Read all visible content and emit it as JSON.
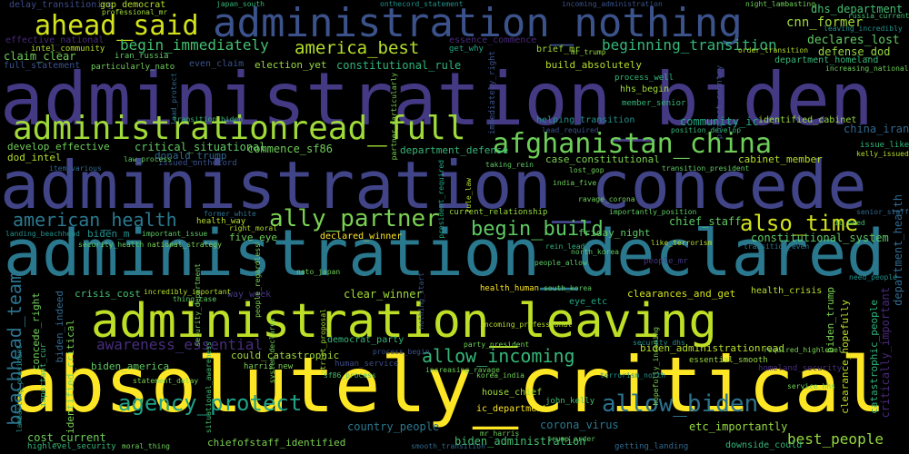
{
  "words": [
    {
      "text": "absolutely_critical",
      "color": "#fde725"
    },
    {
      "text": "administration_biden",
      "color": "#443983"
    },
    {
      "text": "administration_concede",
      "color": "#414487"
    },
    {
      "text": "administration_declared",
      "color": "#2a788e"
    },
    {
      "text": "administration_leaving",
      "color": "#bddf26"
    },
    {
      "text": "administration_nothing",
      "color": "#3b528b"
    },
    {
      "text": "administrationread_full",
      "color": "#a0da39"
    },
    {
      "text": "afghanistan_china",
      "color": "#6ece58"
    },
    {
      "text": "ahead_said",
      "color": "#d2e21b"
    },
    {
      "text": "america_best",
      "color": "#b5de2b"
    },
    {
      "text": "begin_immediately",
      "color": "#44bf70"
    },
    {
      "text": "beginning_transition",
      "color": "#35b779"
    },
    {
      "text": "american_health",
      "color": "#2a788e"
    },
    {
      "text": "ally_partner",
      "color": "#7ad151"
    },
    {
      "text": "begin_build",
      "color": "#5ec962"
    },
    {
      "text": "also_time",
      "color": "#d2e21b"
    },
    {
      "text": "allow_incoming",
      "color": "#35b779"
    },
    {
      "text": "allow_biden",
      "color": "#2c728e"
    },
    {
      "text": "agency_protect",
      "color": "#1fa187"
    },
    {
      "text": "awareness_essential",
      "color": "#472d7b"
    },
    {
      "text": "beachhead_team",
      "color": "#2c728e"
    },
    {
      "text": "cnn_former",
      "color": "#a0da39"
    },
    {
      "text": "dhs_department",
      "color": "#44bf70"
    },
    {
      "text": "declares_lost",
      "color": "#5ec962"
    },
    {
      "text": "defense_dod",
      "color": "#95d840"
    },
    {
      "text": "department_homeland",
      "color": "#35b779"
    },
    {
      "text": "delay_transitioning",
      "color": "#3e4a89"
    },
    {
      "text": "effective_national",
      "color": "#482878"
    },
    {
      "text": "claim_clear",
      "color": "#6ece58"
    },
    {
      "text": "full_statement",
      "color": "#3b528b"
    },
    {
      "text": "constitutional_rule",
      "color": "#2fb47c"
    },
    {
      "text": "build_absolutely",
      "color": "#b5de2b"
    },
    {
      "text": "brief_mr",
      "color": "#a0da39"
    },
    {
      "text": "even_claim",
      "color": "#3b528b"
    },
    {
      "text": "election_yet",
      "color": "#95d840"
    },
    {
      "text": "essence_commence",
      "color": "#482878"
    },
    {
      "text": "get_why",
      "color": "#22a884"
    },
    {
      "text": "community_ic",
      "color": "#22a884"
    },
    {
      "text": "develop_effective",
      "color": "#6ece58"
    },
    {
      "text": "critical_situational",
      "color": "#5ec962"
    },
    {
      "text": "dod_intel",
      "color": "#b5de2b"
    },
    {
      "text": "donald_trump",
      "color": "#31688e"
    },
    {
      "text": "issued_onthecord",
      "color": "#3b528b"
    },
    {
      "text": "commence_sf86",
      "color": "#6ece58"
    },
    {
      "text": "identified_cabinet",
      "color": "#95d840"
    },
    {
      "text": "china_iran",
      "color": "#31688e"
    },
    {
      "text": "department_defense",
      "color": "#35b779"
    },
    {
      "text": "case_constitutional",
      "color": "#7ad151"
    },
    {
      "text": "cabinet_member",
      "color": "#b5de2b"
    },
    {
      "text": "current_relationship",
      "color": "#95d840"
    },
    {
      "text": "chief_staff",
      "color": "#5ec962"
    },
    {
      "text": "friday_night",
      "color": "#5ec962"
    },
    {
      "text": "constitutional_system",
      "color": "#5ec962"
    },
    {
      "text": "health_way",
      "color": "#b5de2b"
    },
    {
      "text": "five_eye",
      "color": "#6ece58"
    },
    {
      "text": "declared_winner",
      "color": "#fde725"
    },
    {
      "text": "biden_m",
      "color": "#21918c"
    },
    {
      "text": "crisis_cost",
      "color": "#44bf70"
    },
    {
      "text": "concede_right",
      "color": "#6ece58"
    },
    {
      "text": "clear_winner",
      "color": "#a0da39"
    },
    {
      "text": "health_human",
      "color": "#fde725"
    },
    {
      "text": "clearances_and_get",
      "color": "#d2e21b"
    },
    {
      "text": "health_crisis",
      "color": "#b5de2b"
    },
    {
      "text": "biden_indeed",
      "color": "#31688e"
    },
    {
      "text": "biden_trump",
      "color": "#7ad151"
    },
    {
      "text": "eye_etc",
      "color": "#21a685"
    },
    {
      "text": "way_week",
      "color": "#443983"
    },
    {
      "text": "could_catastrophic",
      "color": "#a0da39"
    },
    {
      "text": "democrat_party",
      "color": "#35b779"
    },
    {
      "text": "biden_administrationread",
      "color": "#b5de2b"
    },
    {
      "text": "essential_smooth",
      "color": "#95d840"
    },
    {
      "text": "biden_america",
      "color": "#5ec962"
    },
    {
      "text": "important_cur",
      "color": "#35b779"
    },
    {
      "text": "harris_new",
      "color": "#7ad151"
    },
    {
      "text": "human_service",
      "color": "#3e4a89"
    },
    {
      "text": "house_chief",
      "color": "#a0da39"
    },
    {
      "text": "ic_department",
      "color": "#fde725"
    },
    {
      "text": "john_kelly",
      "color": "#44bf70"
    },
    {
      "text": "country_people",
      "color": "#2a788e"
    },
    {
      "text": "corona_virus",
      "color": "#2a788e"
    },
    {
      "text": "biden_administration",
      "color": "#44bf70"
    },
    {
      "text": "etc_importantly",
      "color": "#95d840"
    },
    {
      "text": "best_people",
      "color": "#95d840"
    },
    {
      "text": "cost_current",
      "color": "#6ece58"
    },
    {
      "text": "highlevel_security",
      "color": "#35b779"
    },
    {
      "text": "chiefofstaff_identified",
      "color": "#7ad151"
    },
    {
      "text": "downside_could",
      "color": "#35b779"
    },
    {
      "text": "getting_landing",
      "color": "#31688e"
    },
    {
      "text": "clearance_hopefully",
      "color": "#bddf26"
    },
    {
      "text": "catastrophic_people",
      "color": "#2fb47c"
    },
    {
      "text": "critically_important",
      "color": "#482878"
    },
    {
      "text": "department_health",
      "color": "#31688e"
    },
    {
      "text": "identified_critical",
      "color": "#7ad151"
    },
    {
      "text": "gop_democrat",
      "color": "#b5de2b"
    },
    {
      "text": "intel_community",
      "color": "#b5de2b"
    },
    {
      "text": "iran_russia",
      "color": "#5ec962"
    },
    {
      "text": "particularly_nato",
      "color": "#6ece58"
    },
    {
      "text": "process_well",
      "color": "#35b779"
    },
    {
      "text": "hhs_begin",
      "color": "#a0da39"
    },
    {
      "text": "member_senior",
      "color": "#35b779"
    },
    {
      "text": "helping_transition",
      "color": "#21918c"
    },
    {
      "text": "lead_required",
      "color": "#3b528b"
    },
    {
      "text": "position_develop",
      "color": "#35b779"
    },
    {
      "text": "issue_like",
      "color": "#35b779"
    },
    {
      "text": "kelly_issued",
      "color": "#b5de2b"
    },
    {
      "text": "rein_lead",
      "color": "#2fb47c"
    },
    {
      "text": "like_terrorism",
      "color": "#b5de2b"
    },
    {
      "text": "people_mr",
      "color": "#443983"
    },
    {
      "text": "importantly_position",
      "color": "#5ec962"
    },
    {
      "text": "ravage_corona",
      "color": "#6ece58"
    },
    {
      "text": "immediately_right",
      "color": "#3b528b"
    },
    {
      "text": "nothing_start",
      "color": "#3b528b"
    },
    {
      "text": "russia_current",
      "color": "#44bf70"
    },
    {
      "text": "leaving_incredibly",
      "color": "#21918c"
    },
    {
      "text": "increasing_national",
      "color": "#6ece58"
    },
    {
      "text": "order_transition",
      "color": "#b5de2b"
    },
    {
      "text": "protect_country",
      "color": "#3b528b"
    },
    {
      "text": "homeland_security",
      "color": "#472d7b"
    },
    {
      "text": "korea_india",
      "color": "#6ece58"
    },
    {
      "text": "senior_staff",
      "color": "#31688e"
    },
    {
      "text": "ic_need",
      "color": "#44bf70"
    },
    {
      "text": "professional_mr",
      "color": "#a0da39"
    },
    {
      "text": "japan_south",
      "color": "#35b779"
    },
    {
      "text": "onthecord_statement",
      "color": "#21918c"
    },
    {
      "text": "incoming_administration",
      "color": "#3b528b"
    },
    {
      "text": "night_lambasting",
      "color": "#6ece58"
    },
    {
      "text": "mr_trump",
      "color": "#95d840"
    },
    {
      "text": "lead_protect",
      "color": "#31688e"
    },
    {
      "text": "partner_particularly",
      "color": "#7ad151"
    },
    {
      "text": "rule_law",
      "color": "#b5de2b"
    },
    {
      "text": "president_required",
      "color": "#22a884"
    },
    {
      "text": "incredibly_important",
      "color": "#b5de2b"
    },
    {
      "text": "north_korea",
      "color": "#5ec962"
    },
    {
      "text": "landing_beachhead",
      "color": "#21918c"
    },
    {
      "text": "security_health",
      "color": "#5ec962"
    },
    {
      "text": "national_strategy",
      "color": "#7ad151"
    },
    {
      "text": "important_issue",
      "color": "#5ec962"
    },
    {
      "text": "former_white",
      "color": "#2c728e"
    },
    {
      "text": "right_moral",
      "color": "#b5de2b"
    },
    {
      "text": "people_regardless",
      "color": "#7ad151"
    },
    {
      "text": "nato_japan",
      "color": "#6ece58"
    },
    {
      "text": "trump_order",
      "color": "#5ec962"
    },
    {
      "text": "process_begin",
      "color": "#3b528b"
    },
    {
      "text": "statement_delay",
      "color": "#7ad151"
    },
    {
      "text": "required_highlevel",
      "color": "#7ad151"
    },
    {
      "text": "service_hhs",
      "color": "#6ece58"
    },
    {
      "text": "mr_harris",
      "color": "#6ece58"
    },
    {
      "text": "smooth_transition",
      "color": "#31688e"
    },
    {
      "text": "party_president",
      "color": "#6ece58"
    },
    {
      "text": "incoming_professional",
      "color": "#b5de2b"
    },
    {
      "text": "increasing_ravage",
      "color": "#6ece58"
    },
    {
      "text": "hopefully_incoming",
      "color": "#7ad151"
    },
    {
      "text": "india_five",
      "color": "#6ece58"
    },
    {
      "text": "people_allow",
      "color": "#5ec962"
    },
    {
      "text": "lost_gop",
      "color": "#6ece58"
    },
    {
      "text": "taking_rein",
      "color": "#5ec962"
    },
    {
      "text": "law_process",
      "color": "#5ec962"
    },
    {
      "text": "item_various",
      "color": "#31688e"
    },
    {
      "text": "transition_biden",
      "color": "#35b779"
    },
    {
      "text": "lambasting_president",
      "color": "#21918c"
    },
    {
      "text": "moral_thing",
      "color": "#6ece58"
    },
    {
      "text": "security_department",
      "color": "#6ece58"
    },
    {
      "text": "situational_awareness",
      "color": "#44bf70"
    },
    {
      "text": "thing_case",
      "color": "#5ec962"
    },
    {
      "text": "transition_president",
      "color": "#5ec962"
    },
    {
      "text": "sf86_process",
      "color": "#44bf70"
    },
    {
      "text": "strict_proposal",
      "color": "#a0da39"
    },
    {
      "text": "transition_even",
      "color": "#2a788e"
    },
    {
      "text": "need_people",
      "color": "#21918c"
    },
    {
      "text": "security_dhs",
      "color": "#21918c"
    },
    {
      "text": "terrorism_north",
      "color": "#21918c"
    },
    {
      "text": "system_declares",
      "color": "#6ece58"
    },
    {
      "text": "south_korea",
      "color": "#5ec962"
    }
  ]
}
